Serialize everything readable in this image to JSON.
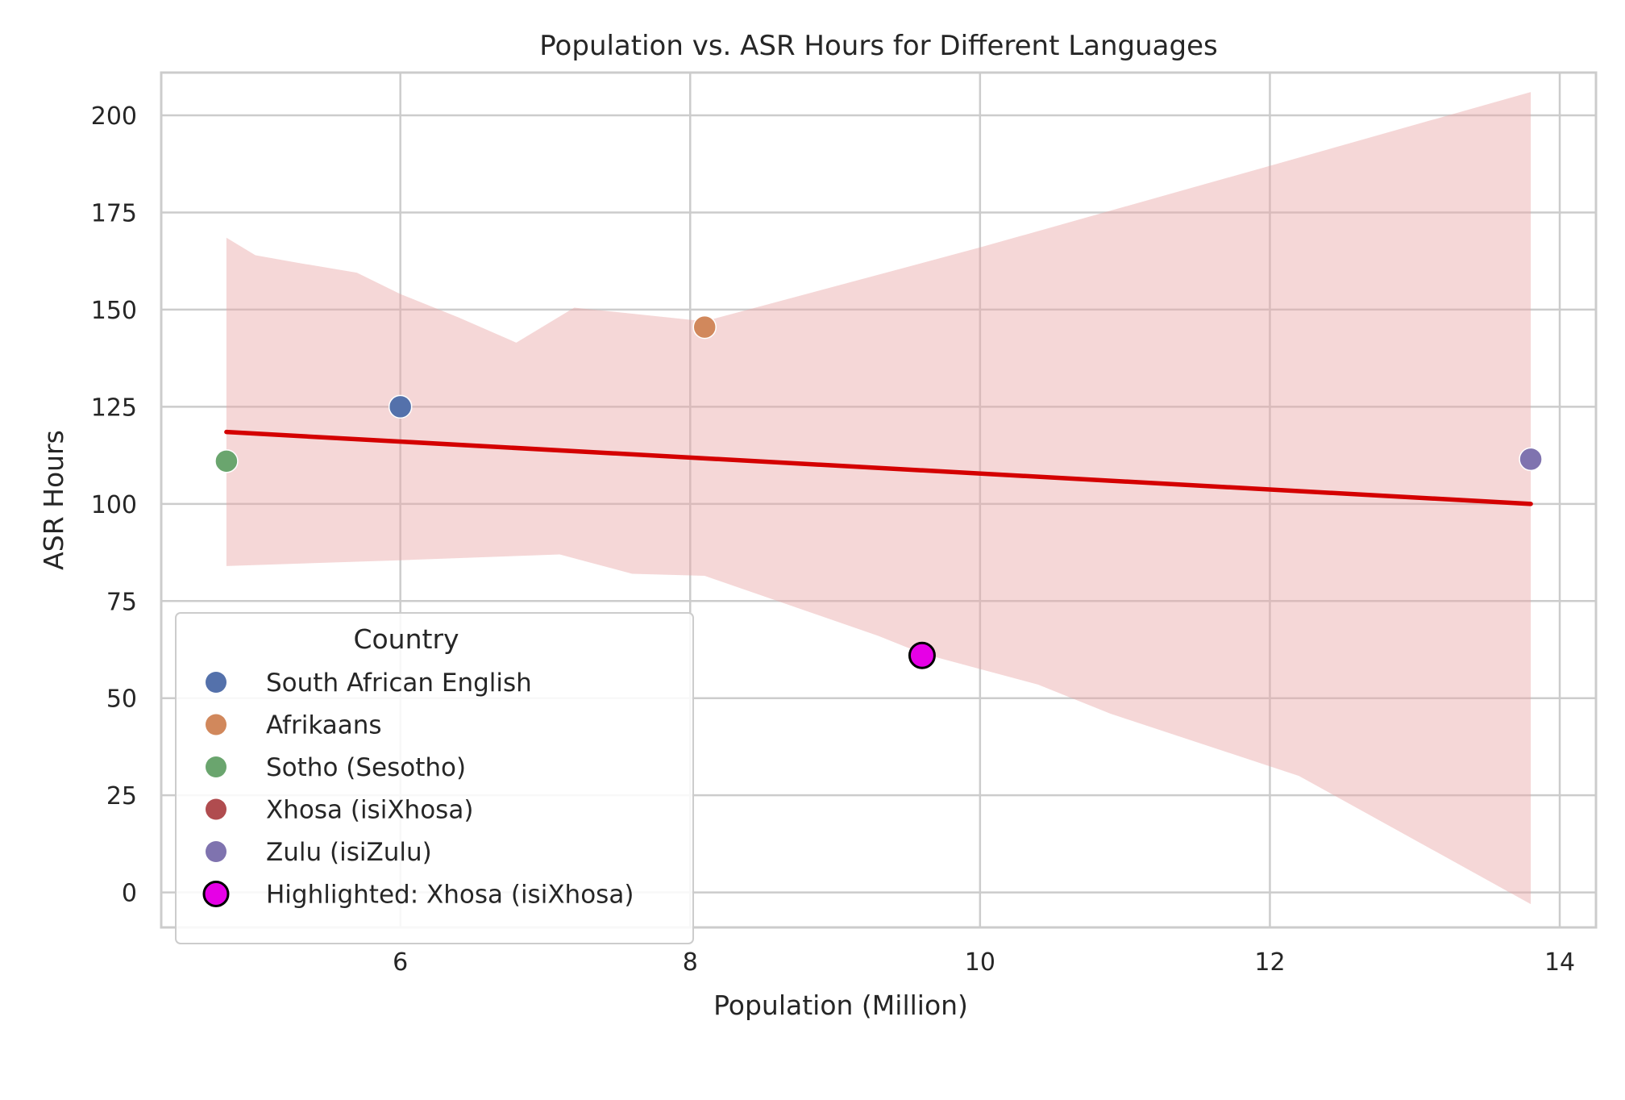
{
  "chart_data": {
    "type": "scatter",
    "title": "Population vs. ASR Hours for Different Languages",
    "xlabel": "Population (Million)",
    "ylabel": "ASR Hours",
    "xlim": [
      4.35,
      14.25
    ],
    "ylim": [
      -9,
      211
    ],
    "xticks": [
      6,
      8,
      10,
      12,
      14
    ],
    "yticks": [
      0,
      25,
      50,
      75,
      100,
      125,
      150,
      175,
      200
    ],
    "grid": true,
    "legend": {
      "title": "Country",
      "placement": "lower-left",
      "entries": [
        {
          "label": "South African English",
          "color": "#5471ab"
        },
        {
          "label": "Afrikaans",
          "color": "#d1885c"
        },
        {
          "label": "Sotho (Sesotho)",
          "color": "#6aa56e"
        },
        {
          "label": "Xhosa (isiXhosa)",
          "color": "#b04c4f"
        },
        {
          "label": "Zulu (isiZulu)",
          "color": "#7f73af"
        },
        {
          "label": "Highlighted: Xhosa (isiXhosa)",
          "color": "#e600e6",
          "highlight": true
        }
      ]
    },
    "series": [
      {
        "name": "South African English",
        "color": "#5471ab",
        "x": [
          6.0
        ],
        "y": [
          125
        ]
      },
      {
        "name": "Afrikaans",
        "color": "#d1885c",
        "x": [
          8.1
        ],
        "y": [
          145.5
        ]
      },
      {
        "name": "Sotho (Sesotho)",
        "color": "#6aa56e",
        "x": [
          4.8
        ],
        "y": [
          111
        ]
      },
      {
        "name": "Xhosa (isiXhosa)",
        "color": "#b04c4f",
        "x": [
          9.6
        ],
        "y": [
          61
        ]
      },
      {
        "name": "Zulu (isiZulu)",
        "color": "#7f73af",
        "x": [
          13.8
        ],
        "y": [
          111.5
        ]
      }
    ],
    "highlight": {
      "name": "Highlighted: Xhosa (isiXhosa)",
      "color": "#e600e6",
      "edge_color": "#000000",
      "x": 9.6,
      "y": 61
    },
    "regression": {
      "color": "#d40000",
      "line": [
        [
          4.8,
          118.5
        ],
        [
          13.8,
          100
        ]
      ],
      "ci_color": "#e8a6a6",
      "ci_upper": [
        [
          4.8,
          168.5
        ],
        [
          5.0,
          164
        ],
        [
          5.3,
          162
        ],
        [
          5.7,
          159.5
        ],
        [
          6.0,
          154
        ],
        [
          6.4,
          148
        ],
        [
          6.8,
          141.5
        ],
        [
          7.2,
          150.5
        ],
        [
          8.1,
          147
        ],
        [
          10.0,
          166
        ],
        [
          12.0,
          187
        ],
        [
          13.8,
          206
        ]
      ],
      "ci_lower": [
        [
          4.8,
          84
        ],
        [
          6.0,
          85.5
        ],
        [
          7.1,
          87
        ],
        [
          7.3,
          85
        ],
        [
          7.6,
          82
        ],
        [
          8.1,
          81.5
        ],
        [
          9.3,
          66
        ],
        [
          9.6,
          61.5
        ],
        [
          10.0,
          57.5
        ],
        [
          10.4,
          53.5
        ],
        [
          10.9,
          46
        ],
        [
          12.2,
          30
        ],
        [
          13.8,
          -3
        ]
      ]
    }
  }
}
